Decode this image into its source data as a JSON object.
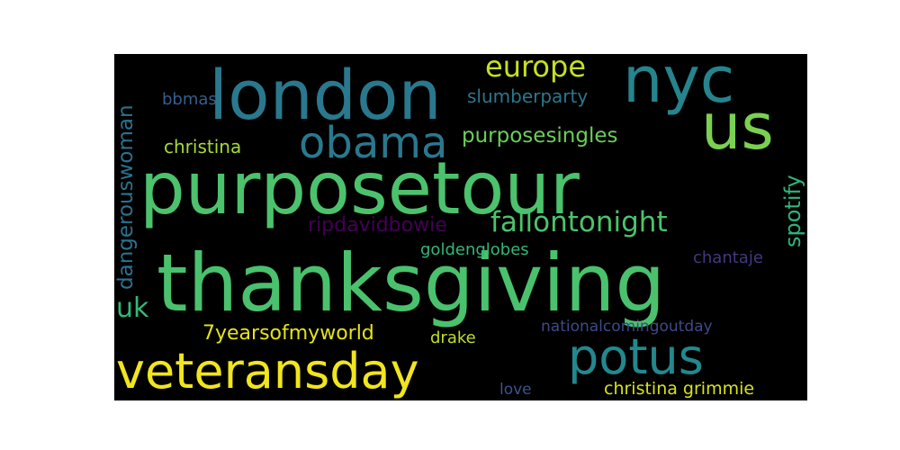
{
  "wordcloud": {
    "words": [
      {
        "text": "purposetour",
        "color": "#4cc26c"
      },
      {
        "text": "thanksgiving",
        "color": "#4ac16d"
      },
      {
        "text": "london",
        "color": "#2a788e"
      },
      {
        "text": "nyc",
        "color": "#25848e"
      },
      {
        "text": "us",
        "color": "#7ad151"
      },
      {
        "text": "obama",
        "color": "#2a788e"
      },
      {
        "text": "veteransday",
        "color": "#f1e51d"
      },
      {
        "text": "potus",
        "color": "#23888e"
      },
      {
        "text": "europe",
        "color": "#c8e020"
      },
      {
        "text": "purposesingles",
        "color": "#6ccd5a"
      },
      {
        "text": "fallontonight",
        "color": "#4cc26c"
      },
      {
        "text": "slumberparty",
        "color": "#2a788e"
      },
      {
        "text": "christina",
        "color": "#a5db36"
      },
      {
        "text": "bbmas",
        "color": "#355f8d"
      },
      {
        "text": "dangerouswoman",
        "color": "#2c728e"
      },
      {
        "text": "spotify",
        "color": "#2fb47c"
      },
      {
        "text": "ripdavidbowie",
        "color": "#440154"
      },
      {
        "text": "goldenglobes",
        "color": "#34b679"
      },
      {
        "text": "chantaje",
        "color": "#453781"
      },
      {
        "text": "uk",
        "color": "#35b779"
      },
      {
        "text": "7yearsofmyworld",
        "color": "#e5e419"
      },
      {
        "text": "drake",
        "color": "#c2df23"
      },
      {
        "text": "nationalcomingoutday",
        "color": "#3e4a89"
      },
      {
        "text": "love",
        "color": "#3b528b"
      },
      {
        "text": "christina grimmie",
        "color": "#d8e219"
      }
    ]
  }
}
